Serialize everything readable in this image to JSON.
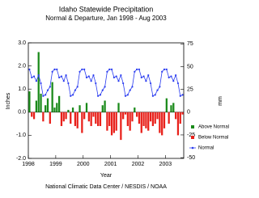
{
  "chart_data": {
    "type": "bar",
    "title": "Idaho Statewide Precipitation",
    "subtitle": "Normal & Departure, Jan 1998 - Aug 2003",
    "x_label": "Year",
    "y_label": "Inches",
    "y2_label": "mm",
    "source": "National Climatic Data Center / NESDIS / NOAA",
    "categories": [
      "1998",
      null,
      null,
      null,
      null,
      null,
      null,
      null,
      null,
      null,
      null,
      null,
      "1999",
      null,
      null,
      null,
      null,
      null,
      null,
      null,
      null,
      null,
      null,
      null,
      "2000",
      null,
      null,
      null,
      null,
      null,
      null,
      null,
      null,
      null,
      null,
      null,
      "2001",
      null,
      null,
      null,
      null,
      null,
      null,
      null,
      null,
      null,
      null,
      null,
      "2002",
      null,
      null,
      null,
      null,
      null,
      null,
      null,
      null,
      null,
      null,
      null,
      "2003",
      null,
      null,
      null,
      null,
      null,
      null,
      null
    ],
    "ylim": [
      -2.0,
      3.0
    ],
    "yticks": [
      {
        "value": -2,
        "label": "-2.0"
      },
      {
        "value": -1,
        "label": "-1.0"
      },
      {
        "value": 0,
        "label": "0.0"
      },
      {
        "value": 1,
        "label": "1.0"
      },
      {
        "value": 2,
        "label": "2.0"
      },
      {
        "value": 3,
        "label": "3.0"
      }
    ],
    "y2lim": [
      -50.8,
      76.2
    ],
    "y2ticks": [
      -50,
      -25,
      0,
      25,
      50,
      75
    ],
    "legend": "right",
    "series": [
      {
        "name": "Above Normal",
        "type": "bar",
        "color": "#1a8a1a",
        "values": [
          0.9,
          null,
          null,
          0.5,
          2.6,
          0.8,
          null,
          0.3,
          0.6,
          null,
          1.3,
          0.2,
          0.4,
          0.7,
          null,
          null,
          null,
          0.1,
          null,
          0.2,
          null,
          null,
          0.3,
          null,
          null,
          0.4,
          null,
          null,
          null,
          null,
          null,
          null,
          0.3,
          0.5,
          null,
          null,
          null,
          null,
          null,
          0.4,
          null,
          null,
          null,
          null,
          null,
          null,
          0.2,
          null,
          null,
          null,
          null,
          null,
          null,
          null,
          null,
          null,
          null,
          null,
          null,
          null,
          0.6,
          null,
          0.3,
          0.4,
          null,
          null,
          null,
          null
        ]
      },
      {
        "name": "Below Normal",
        "type": "bar",
        "color": "#e8201a",
        "values": [
          null,
          -0.2,
          -0.3,
          null,
          null,
          null,
          -0.4,
          null,
          null,
          -0.5,
          null,
          null,
          null,
          null,
          -0.6,
          -0.4,
          -0.3,
          null,
          -0.5,
          null,
          -0.6,
          -0.7,
          null,
          -0.9,
          -0.3,
          null,
          -0.4,
          -0.6,
          -0.2,
          -0.5,
          -0.6,
          -0.6,
          null,
          null,
          -0.8,
          -0.6,
          -1.0,
          -0.9,
          -0.8,
          null,
          -1.2,
          -0.3,
          -0.1,
          -0.6,
          -0.8,
          -0.4,
          null,
          -0.2,
          -0.5,
          -0.9,
          -0.6,
          -0.7,
          -0.8,
          -0.4,
          -0.6,
          -0.5,
          -0.3,
          -0.9,
          -1.0,
          -0.7,
          null,
          -0.5,
          null,
          null,
          -0.3,
          -1.0,
          -0.5,
          -0.1
        ]
      },
      {
        "name": "Normal",
        "type": "line",
        "color": "#2a3cf0",
        "values": [
          1.85,
          1.5,
          1.55,
          1.35,
          1.6,
          1.25,
          0.7,
          0.75,
          0.95,
          1.1,
          1.75,
          1.85,
          1.85,
          1.5,
          1.55,
          1.35,
          1.6,
          1.25,
          0.7,
          0.75,
          0.95,
          1.1,
          1.75,
          1.85,
          1.85,
          1.5,
          1.55,
          1.35,
          1.6,
          1.25,
          0.7,
          0.75,
          0.95,
          1.1,
          1.75,
          1.85,
          1.85,
          1.5,
          1.55,
          1.35,
          1.6,
          1.25,
          0.7,
          0.75,
          0.95,
          1.1,
          1.75,
          1.85,
          1.85,
          1.5,
          1.55,
          1.35,
          1.6,
          1.25,
          0.7,
          0.75,
          0.95,
          1.1,
          1.75,
          1.85,
          1.85,
          1.5,
          1.55,
          1.35,
          1.6,
          1.25,
          0.7,
          0.75
        ]
      }
    ]
  }
}
